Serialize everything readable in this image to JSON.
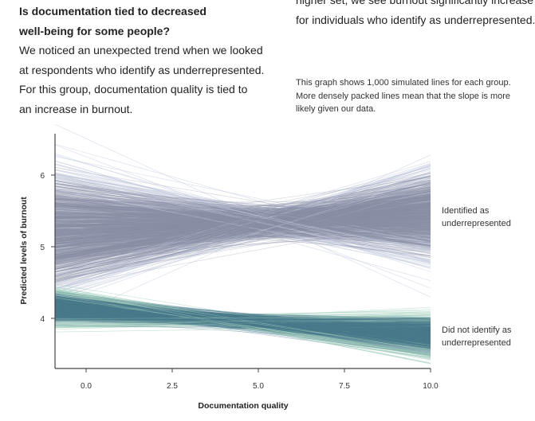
{
  "left_text": {
    "heading_line1": "Is documentation tied to decreased",
    "heading_line2": "well-being for some people?",
    "body_lines": [
      "We noticed an unexpected trend when we looked",
      "at respondents who identify as underrepresented.",
      "For this group, documentation quality is tied to",
      "an increase in burnout."
    ]
  },
  "right_text": {
    "lines": [
      "higher set, we see burnout significantly increase",
      "for individuals who identify as underrepresented."
    ],
    "note_lines": [
      "This graph shows 1,000 simulated lines for each group.",
      "More densely packed lines mean that the slope is more",
      "likely given our data."
    ]
  },
  "chart_data": {
    "type": "line",
    "xlabel": "Documentation quality",
    "ylabel": "Predicted levels of burnout",
    "xlim": [
      -0.9,
      10.0
    ],
    "ylim": [
      3.3,
      6.58
    ],
    "xticks": [
      "0.0",
      "2.5",
      "5.0",
      "7.5",
      "10.0"
    ],
    "yticks": [
      "4",
      "5",
      "6"
    ],
    "grid": false,
    "legend": "direct labels at right",
    "lines_per_group": 1000,
    "series": [
      {
        "name": "Identified as underrepresented",
        "label_lines": [
          "Identified as",
          "underrepresented"
        ],
        "color": "#8a8fa6",
        "edge_color": "#c5cbe0",
        "mean_at_x0": 5.24,
        "mean_at_x10": 5.45,
        "pinch_x": 5.5,
        "value_at_pinch": 5.35,
        "spread_at_pinch": 0.1,
        "slope_mean": 0.02,
        "slope_sd": 0.06
      },
      {
        "name": "Did not identify as underrepresented",
        "label_lines": [
          "Did not identify as",
          "underrepresented"
        ],
        "color": "#4a7b8c",
        "edge_color": "#a9d3c2",
        "mean_at_x0": 4.12,
        "mean_at_x10": 3.77,
        "pinch_x": 4.0,
        "value_at_pinch": 3.98,
        "spread_at_pinch": 0.04,
        "slope_mean": -0.035,
        "slope_sd": 0.02
      }
    ]
  }
}
